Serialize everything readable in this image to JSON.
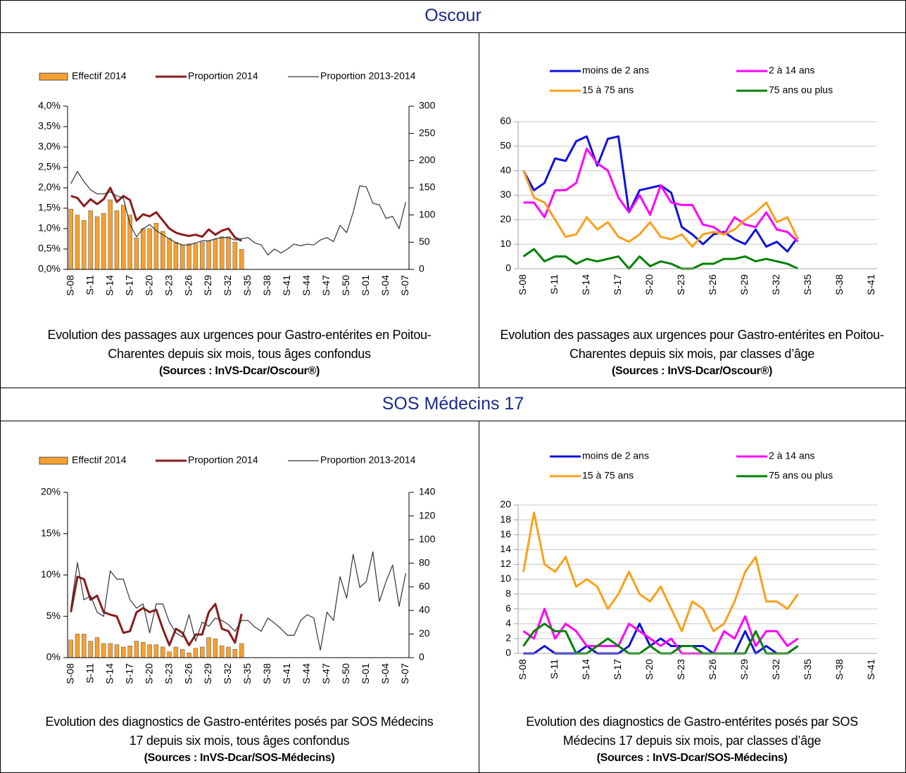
{
  "sections": [
    "Oscour",
    "SOS Médecins 17"
  ],
  "chart_data": [
    {
      "type": "combo",
      "caption": "Evolution des passages aux urgences pour Gastro-entérites en Poitou-Charentes depuis six mois, tous âges confondus",
      "source": "(Sources : InVS-Dcar/Oscour®)",
      "categories": [
        "S-08",
        null,
        null,
        "S-11",
        null,
        null,
        "S-14",
        null,
        null,
        "S-17",
        null,
        null,
        "S-20",
        null,
        null,
        "S-23",
        null,
        null,
        "S-26",
        null,
        null,
        "S-29",
        null,
        null,
        "S-32",
        null,
        null,
        "S-35",
        null,
        null,
        "S-38",
        null,
        null,
        "S-41",
        null,
        null,
        "S-44",
        null,
        null,
        "S-47",
        null,
        null,
        "S-50",
        null,
        null,
        "S-01",
        null,
        null,
        "S-04",
        null,
        null,
        "S-07"
      ],
      "ylim": [
        0,
        4
      ],
      "yticks": [
        {
          "value": 0,
          "label": "0,0%"
        },
        {
          "value": 0.5,
          "label": "0,5%"
        },
        {
          "value": 1,
          "label": "1,0%"
        },
        {
          "value": 1.5,
          "label": "1,5%"
        },
        {
          "value": 2,
          "label": "2,0%"
        },
        {
          "value": 2.5,
          "label": "2,5%"
        },
        {
          "value": 3,
          "label": "3,0%"
        },
        {
          "value": 3.5,
          "label": "3,5%"
        },
        {
          "value": 4,
          "label": "4,0%"
        }
      ],
      "y2lim": [
        0,
        300
      ],
      "y2ticks": [
        0,
        50,
        100,
        150,
        200,
        250,
        300
      ],
      "grid": false,
      "legend": "top",
      "series": [
        {
          "name": "Effectif 2014",
          "type": "bar",
          "axis": "y2",
          "color": "#f5a030",
          "values": [
            111,
            100,
            90,
            108,
            97,
            103,
            128,
            108,
            118,
            100,
            58,
            75,
            75,
            85,
            70,
            57,
            50,
            45,
            47,
            47,
            50,
            52,
            55,
            60,
            60,
            50,
            37,
            null,
            null,
            null,
            null,
            null,
            null,
            null,
            null,
            null,
            null,
            null,
            null,
            null,
            null,
            null,
            null,
            null,
            null,
            null,
            null,
            null,
            null,
            null,
            null,
            null
          ]
        },
        {
          "name": "Proportion 2014",
          "type": "line",
          "line_width": 3,
          "color": "#8b1a1a",
          "values": [
            1.8,
            1.75,
            1.55,
            1.72,
            1.6,
            1.72,
            2.0,
            1.65,
            1.8,
            1.7,
            1.2,
            1.35,
            1.3,
            1.4,
            1.2,
            1.0,
            0.9,
            0.85,
            0.82,
            0.85,
            0.8,
            0.98,
            0.85,
            0.95,
            1.0,
            0.78,
            0.7,
            null,
            null,
            null,
            null,
            null,
            null,
            null,
            null,
            null,
            null,
            null,
            null,
            null,
            null,
            null,
            null,
            null,
            null,
            null,
            null,
            null,
            null,
            null,
            null,
            null
          ]
        },
        {
          "name": "Proportion 2013-2014",
          "type": "line",
          "line_width": 1.2,
          "color": "#333333",
          "values": [
            2.1,
            2.4,
            2.15,
            1.95,
            1.85,
            1.85,
            1.9,
            1.8,
            1.75,
            1.1,
            0.8,
            1.0,
            1.1,
            0.95,
            0.85,
            0.75,
            0.65,
            0.6,
            0.6,
            0.65,
            0.7,
            0.7,
            0.75,
            0.78,
            0.78,
            0.72,
            0.75,
            0.78,
            0.65,
            0.6,
            0.35,
            0.5,
            0.4,
            0.5,
            0.62,
            0.58,
            0.62,
            0.6,
            0.72,
            0.78,
            0.68,
            1.08,
            0.9,
            1.4,
            2.05,
            2.02,
            1.62,
            1.58,
            1.25,
            1.3,
            1.0,
            1.65
          ]
        }
      ]
    },
    {
      "type": "line",
      "caption": "Evolution des passages aux urgences pour Gastro-entérites en Poitou-Charentes depuis six mois, par classes d’âge",
      "source": "(Sources : InVS-Dcar/Oscour®)",
      "categories": [
        "S-08",
        null,
        null,
        "S-11",
        null,
        null,
        "S-14",
        null,
        null,
        "S-17",
        null,
        null,
        "S-20",
        null,
        null,
        "S-23",
        null,
        null,
        "S-26",
        null,
        null,
        "S-29",
        null,
        null,
        "S-32",
        null,
        null,
        "S-35",
        null,
        null,
        "S-38",
        null,
        null,
        "S-41"
      ],
      "ylim": [
        0,
        60
      ],
      "yticks": [
        0,
        10,
        20,
        30,
        40,
        50,
        60
      ],
      "grid": true,
      "legend": "top",
      "series": [
        {
          "name": "moins de 2 ans",
          "color": "#1010e0",
          "values": [
            40,
            32,
            35,
            45,
            44,
            52,
            54,
            42,
            53,
            54,
            23,
            32,
            33,
            34,
            31,
            17,
            14,
            10,
            14,
            15,
            12,
            10,
            16,
            9,
            11,
            7,
            13,
            null,
            null,
            null,
            null,
            null,
            null,
            null
          ]
        },
        {
          "name": "2 à 14 ans",
          "color": "#ff00ff",
          "values": [
            27,
            27,
            21,
            32,
            32,
            35,
            49,
            43,
            40,
            29,
            23,
            30,
            22,
            34,
            27,
            26,
            26,
            18,
            17,
            14,
            21,
            18,
            17,
            23,
            16,
            15,
            11,
            null,
            null,
            null,
            null,
            null,
            null,
            null
          ]
        },
        {
          "name": "15 à 75 ans",
          "color": "#f9a11b",
          "values": [
            40,
            29,
            27,
            20,
            13,
            14,
            21,
            16,
            19,
            13,
            11,
            14,
            19,
            13,
            12,
            14,
            9,
            14,
            15,
            14,
            16,
            20,
            23,
            27,
            19,
            21,
            12,
            null,
            null,
            null,
            null,
            null,
            null,
            null
          ]
        },
        {
          "name": "75 ans ou plus",
          "color": "#008000",
          "values": [
            5,
            8,
            3,
            5,
            5,
            2,
            4,
            3,
            4,
            5,
            0,
            5,
            1,
            3,
            2,
            0,
            0,
            2,
            2,
            4,
            4,
            5,
            3,
            4,
            3,
            2,
            0,
            null,
            null,
            null,
            null,
            null,
            null,
            null
          ]
        }
      ]
    },
    {
      "type": "combo",
      "caption": "Evolution des diagnostics de Gastro-entérites posés par SOS Médecins 17 depuis six mois, tous âges confondus",
      "source": "(Sources : InVS-Dcar/SOS-Médecins)",
      "categories": [
        "S-08",
        null,
        null,
        "S-11",
        null,
        null,
        "S-14",
        null,
        null,
        "S-17",
        null,
        null,
        "S-20",
        null,
        null,
        "S-23",
        null,
        null,
        "S-26",
        null,
        null,
        "S-29",
        null,
        null,
        "S-32",
        null,
        null,
        "S-35",
        null,
        null,
        "S-38",
        null,
        null,
        "S-41",
        null,
        null,
        "S-44",
        null,
        null,
        "S-47",
        null,
        null,
        "S-50",
        null,
        null,
        "S-01",
        null,
        null,
        "S-04",
        null,
        null,
        "S-07"
      ],
      "ylim": [
        0,
        20
      ],
      "yticks": [
        {
          "value": 0,
          "label": "0%"
        },
        {
          "value": 5,
          "label": "5%"
        },
        {
          "value": 10,
          "label": "10%"
        },
        {
          "value": 15,
          "label": "15%"
        },
        {
          "value": 20,
          "label": "20%"
        }
      ],
      "y2lim": [
        0,
        140
      ],
      "y2ticks": [
        0,
        20,
        40,
        60,
        80,
        100,
        120,
        140
      ],
      "grid": false,
      "legend": "top",
      "series": [
        {
          "name": "Effectif 2014",
          "type": "bar",
          "axis": "y2",
          "color": "#f5a030",
          "values": [
            15,
            20,
            20,
            14,
            17,
            12,
            12,
            11,
            9,
            10,
            14,
            13,
            11,
            11,
            9,
            5,
            9,
            7,
            4,
            8,
            9,
            17,
            16,
            10,
            9,
            7,
            12,
            null,
            null,
            null,
            null,
            null,
            null,
            null,
            null,
            null,
            null,
            null,
            null,
            null,
            null,
            null,
            null,
            null,
            null,
            null,
            null,
            null,
            null,
            null,
            null,
            null
          ]
        },
        {
          "name": "Proportion 2014",
          "type": "line",
          "line_width": 3,
          "color": "#8b1a1a",
          "values": [
            5.5,
            9.8,
            9.5,
            7,
            7.5,
            5.5,
            5.2,
            5,
            3,
            3.2,
            5.5,
            6,
            5.5,
            5.8,
            3.5,
            1.5,
            3.5,
            3,
            1.5,
            2.8,
            2.8,
            5.5,
            6.5,
            3.5,
            3.2,
            1.8,
            5.3,
            null,
            null,
            null,
            null,
            null,
            null,
            null,
            null,
            null,
            null,
            null,
            null,
            null,
            null,
            null,
            null,
            null,
            null,
            null,
            null,
            null,
            null,
            null,
            null,
            null
          ]
        },
        {
          "name": "Proportion 2013-2014",
          "type": "line",
          "line_width": 1.2,
          "color": "#333333",
          "values": [
            6,
            11.5,
            7,
            7.5,
            5.5,
            5,
            10.5,
            9.5,
            9.5,
            7,
            6,
            6.5,
            3,
            6.5,
            6.5,
            4.3,
            3,
            2.5,
            5.2,
            2,
            4.3,
            3.8,
            4.8,
            4.5,
            4,
            3.2,
            4.5,
            4.5,
            3.7,
            3.2,
            4.8,
            4.2,
            3.5,
            2.7,
            2.7,
            4.5,
            5.2,
            4.8,
            0.9,
            5.5,
            4.5,
            9.8,
            7.2,
            12.5,
            8.5,
            9.2,
            12.8,
            6.8,
            9.2,
            11.2,
            6.2,
            10.2
          ]
        }
      ]
    },
    {
      "type": "line",
      "caption": "Evolution des diagnostics de Gastro-entérites posés par SOS Médecins 17 depuis six mois, par classes d’âge",
      "source": "(Sources : InVS-Dcar/SOS-Médecins)",
      "categories": [
        "S-08",
        null,
        null,
        "S-11",
        null,
        null,
        "S-14",
        null,
        null,
        "S-17",
        null,
        null,
        "S-20",
        null,
        null,
        "S-23",
        null,
        null,
        "S-26",
        null,
        null,
        "S-29",
        null,
        null,
        "S-32",
        null,
        null,
        "S-35",
        null,
        null,
        "S-38",
        null,
        null,
        "S-41"
      ],
      "ylim": [
        0,
        20
      ],
      "yticks": [
        0,
        2,
        4,
        6,
        8,
        10,
        12,
        14,
        16,
        18,
        20
      ],
      "grid": true,
      "legend": "top",
      "series": [
        {
          "name": "moins de 2 ans",
          "color": "#1010e0",
          "values": [
            0,
            0,
            1,
            0,
            0,
            0,
            1,
            0,
            0,
            0,
            1,
            4,
            1,
            2,
            1,
            1,
            1,
            1,
            0,
            0,
            0,
            3,
            0,
            1,
            0,
            0,
            1,
            null,
            null,
            null,
            null,
            null,
            null,
            null
          ]
        },
        {
          "name": "2 à 14 ans",
          "color": "#ff00ff",
          "values": [
            3,
            2,
            6,
            2,
            4,
            3,
            1,
            1,
            1,
            1,
            4,
            3,
            2,
            1,
            2,
            0,
            0,
            0,
            0,
            3,
            2,
            5,
            1,
            3,
            3,
            1,
            2,
            null,
            null,
            null,
            null,
            null,
            null,
            null
          ]
        },
        {
          "name": "15 à 75 ans",
          "color": "#f9a11b",
          "values": [
            11,
            19,
            12,
            11,
            13,
            9,
            10,
            9,
            6,
            8,
            11,
            8,
            7,
            9,
            6,
            3,
            7,
            6,
            3,
            4,
            7,
            11,
            13,
            7,
            7,
            6,
            8,
            null,
            null,
            null,
            null,
            null,
            null,
            null
          ]
        },
        {
          "name": "75 ans ou plus",
          "color": "#008000",
          "values": [
            1,
            3,
            4,
            3,
            3,
            0,
            0,
            1,
            2,
            1,
            0,
            0,
            1,
            0,
            0,
            1,
            1,
            0,
            0,
            0,
            0,
            0,
            3,
            0,
            0,
            0,
            1,
            null,
            null,
            null,
            null,
            null,
            null,
            null
          ]
        }
      ]
    }
  ]
}
